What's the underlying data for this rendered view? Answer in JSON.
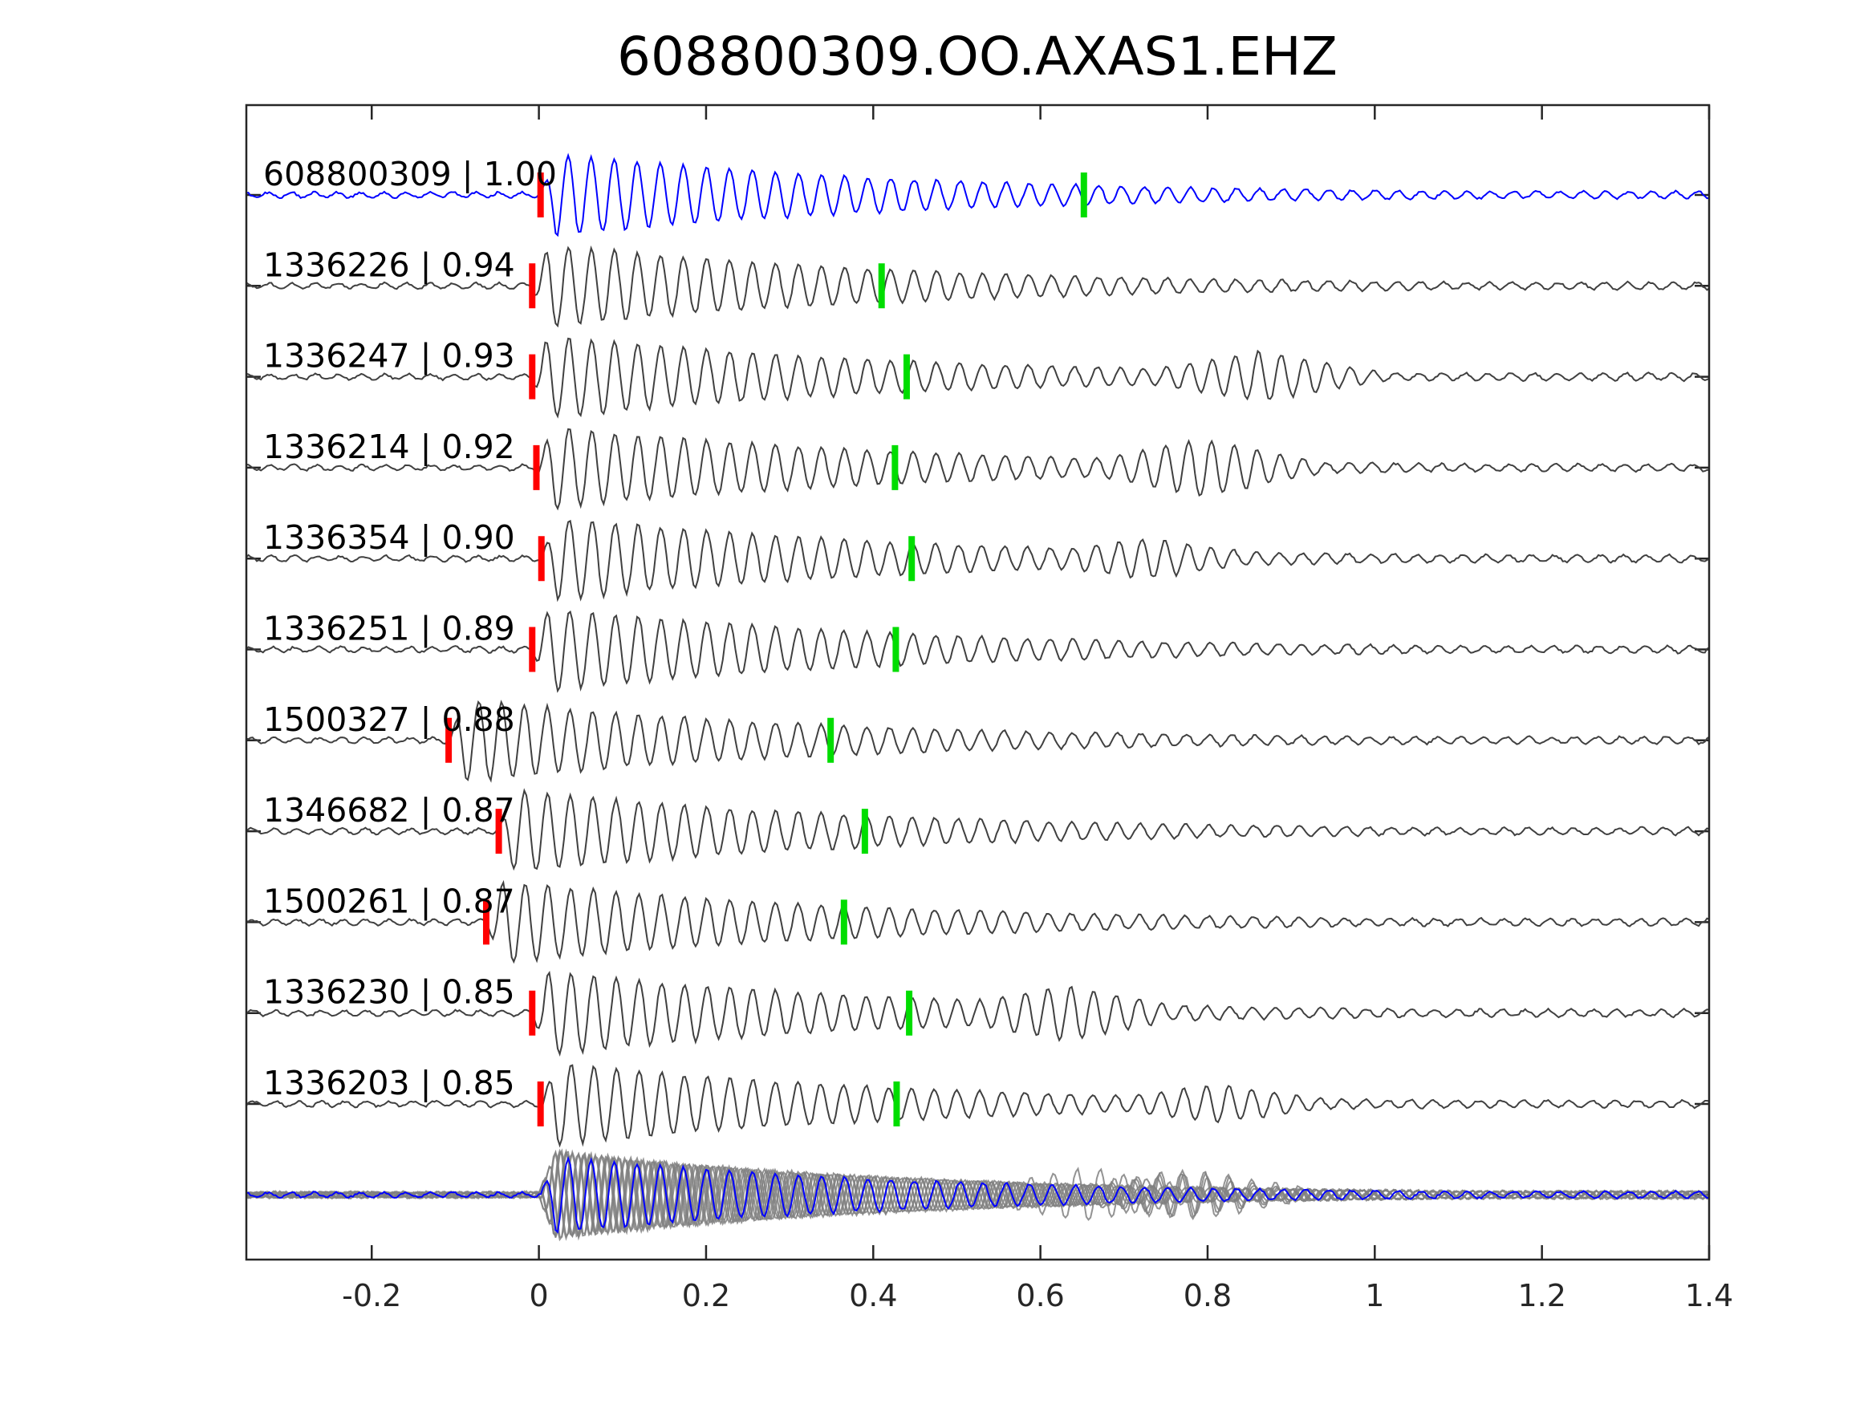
{
  "chart_data": {
    "type": "line",
    "title": "608800309.OO.AXAS1.EHZ",
    "xlabel": "",
    "ylabel": "",
    "xlim": [
      -0.35,
      1.4
    ],
    "x_ticks": [
      -0.2,
      0,
      0.2,
      0.4,
      0.6,
      0.8,
      1,
      1.2,
      1.4
    ],
    "x_tick_labels": [
      "-0.2",
      "0",
      "0.2",
      "0.4",
      "0.6",
      "0.8",
      "1",
      "1.2",
      "1.4"
    ],
    "grid": false,
    "colors": {
      "template": "#0000ff",
      "trace": "#404040",
      "stack": "#808080",
      "p_pick": "#ff0000",
      "s_pick": "#00dd00",
      "axis": "#262626"
    },
    "traces": [
      {
        "label": "608800309 | 1.00",
        "p_pick": 0.002,
        "s_pick": 0.652,
        "role": "template"
      },
      {
        "label": "1336226 | 0.94",
        "p_pick": -0.008,
        "s_pick": 0.41
      },
      {
        "label": "1336247 | 0.93",
        "p_pick": -0.008,
        "s_pick": 0.44
      },
      {
        "label": "1336214 | 0.92",
        "p_pick": -0.003,
        "s_pick": 0.426
      },
      {
        "label": "1336354 | 0.90",
        "p_pick": 0.003,
        "s_pick": 0.446
      },
      {
        "label": "1336251 | 0.89",
        "p_pick": -0.008,
        "s_pick": 0.427
      },
      {
        "label": "1500327 | 0.88",
        "p_pick": -0.108,
        "s_pick": 0.349
      },
      {
        "label": "1346682 | 0.87",
        "p_pick": -0.048,
        "s_pick": 0.39
      },
      {
        "label": "1500261 | 0.87",
        "p_pick": -0.063,
        "s_pick": 0.365
      },
      {
        "label": "1336230 | 0.85",
        "p_pick": -0.008,
        "s_pick": 0.443
      },
      {
        "label": "1336203 | 0.85",
        "p_pick": 0.002,
        "s_pick": 0.428
      }
    ]
  }
}
